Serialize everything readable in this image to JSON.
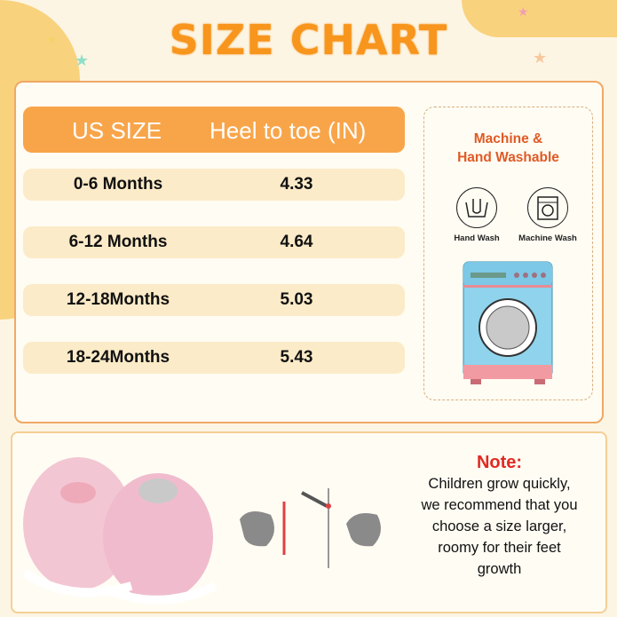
{
  "title": "SIZE CHART",
  "table": {
    "headers": [
      "US SIZE",
      "Heel to toe (IN)"
    ],
    "rows": [
      {
        "size": "0-6 Months",
        "length": "4.33"
      },
      {
        "size": "6-12 Months",
        "length": "4.64"
      },
      {
        "size": "12-18Months",
        "length": "5.03"
      },
      {
        "size": "18-24Months",
        "length": "5.43"
      }
    ]
  },
  "wash": {
    "title_line1": "Machine &",
    "title_line2": "Hand Washable",
    "hand_wash": "Hand Wash",
    "machine_wash": "Machine Wash"
  },
  "note": {
    "title": "Note:",
    "lines": [
      "Children grow quickly,",
      "we recommend that you",
      "choose a size larger,",
      "roomy for their feet",
      "growth"
    ]
  },
  "colors": {
    "accent": "#f7951d",
    "header": "#f8a54a",
    "row": "#fcebc8",
    "note": "#e02a22",
    "wash_title": "#e05a25"
  }
}
